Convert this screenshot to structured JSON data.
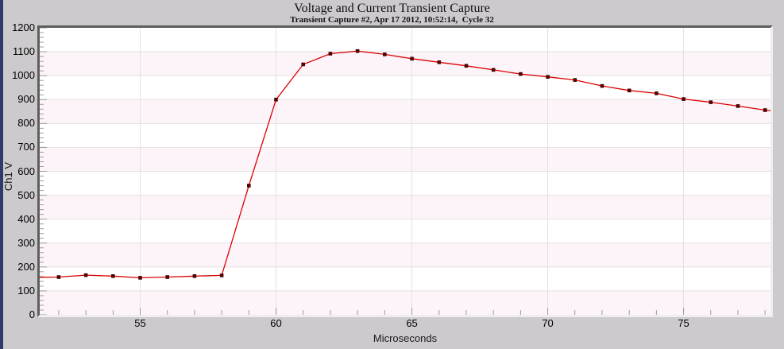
{
  "header": {
    "title": "Voltage and Current Transient Capture",
    "subtitle": "Transient Capture #2, Apr 17 2012, 10:52:14,  Cycle 32"
  },
  "colors": {
    "window_background": "#cdcacd",
    "window_left_border": "#2e3a6c",
    "plot_background_white": "#ffffff",
    "plot_band_pink": "#fdf4fa",
    "gridline": "#e3e1e3",
    "tick": "#9b9b9b",
    "series_line": "#dc0000",
    "marker": "#4c0000",
    "frame_dark": "#5e5e5e",
    "frame_light": "#efedef"
  },
  "chart_data": {
    "type": "line",
    "title": "Voltage and Current Transient Capture",
    "subtitle": "Transient Capture #2, Apr 17 2012, 10:52:14,  Cycle 32",
    "xlabel": "Microseconds",
    "ylabel": "Ch1 V",
    "xlim": [
      51.3,
      78.2
    ],
    "ylim": [
      0,
      1200
    ],
    "x_ticks_major": [
      55,
      60,
      65,
      70,
      75
    ],
    "x_minor_step": 1,
    "y_ticks_major": [
      0,
      100,
      200,
      300,
      400,
      500,
      600,
      700,
      800,
      900,
      1000,
      1100,
      1200
    ],
    "y_minor_step": 20,
    "grid": true,
    "band_stripes": "alternating pink/white every 100 V, pink from 0-100",
    "legend_position": "none",
    "x": [
      52,
      53,
      54,
      55,
      56,
      57,
      58,
      59,
      60,
      61,
      62,
      63,
      64,
      65,
      66,
      67,
      68,
      69,
      70,
      71,
      72,
      73,
      74,
      75,
      76,
      77,
      78
    ],
    "y": [
      158,
      166,
      162,
      155,
      158,
      162,
      165,
      540,
      900,
      1047,
      1092,
      1103,
      1089,
      1071,
      1056,
      1041,
      1024,
      1007,
      995,
      982,
      957,
      938,
      926,
      902,
      889,
      873,
      856
    ],
    "edge_line_left": {
      "x": 51.3,
      "y": 157
    },
    "edge_line_right": {
      "x": 78.2,
      "y": 853
    }
  }
}
